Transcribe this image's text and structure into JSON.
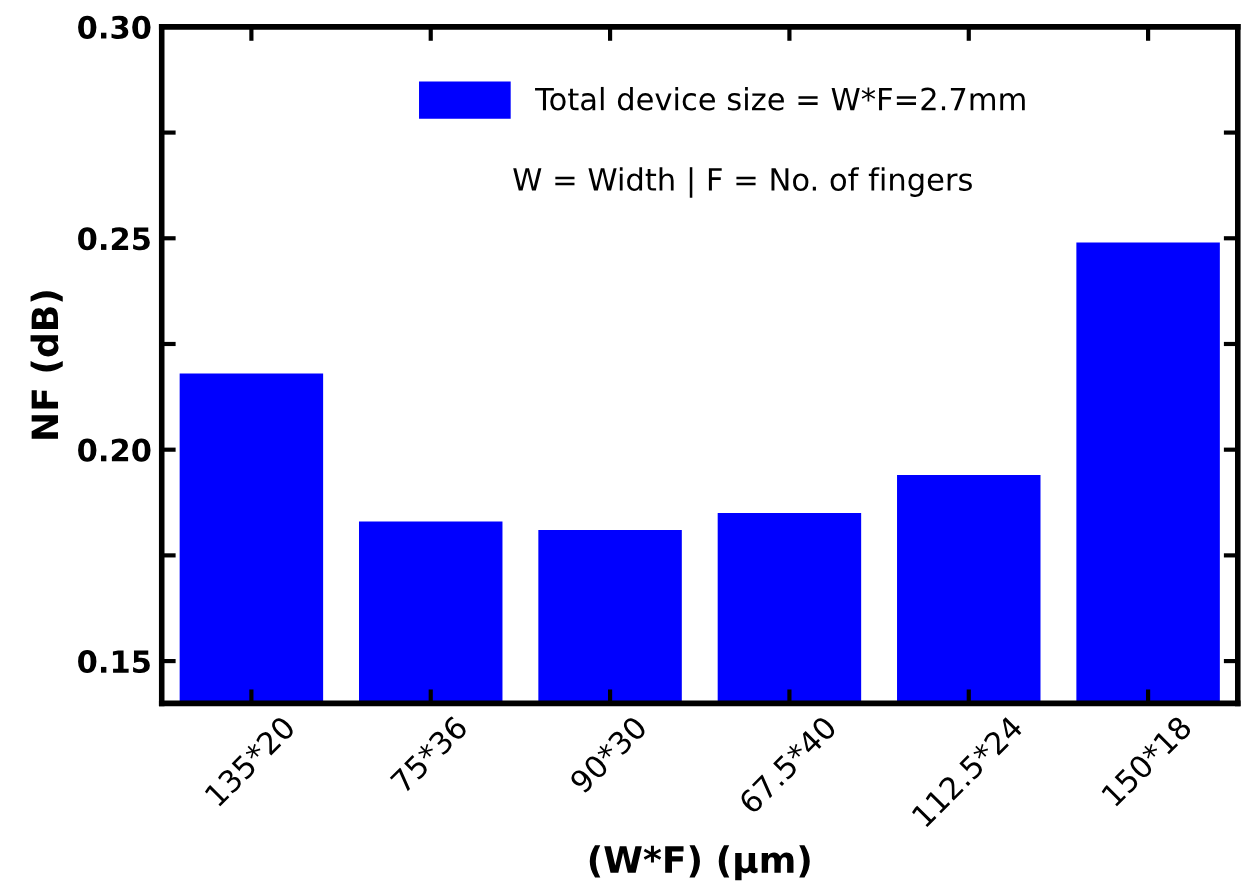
{
  "chart_data": {
    "type": "bar",
    "xlabel": "(W*F) (μm)",
    "ylabel": "NF (dB)",
    "categories": [
      "135*20",
      "75*36",
      "90*30",
      "67.5*40",
      "112.5*24",
      "150*18"
    ],
    "series": [
      {
        "name": "Total device size = W*F=2.7mm",
        "color": "#0000ff",
        "values": [
          0.218,
          0.183,
          0.181,
          0.185,
          0.194,
          0.249
        ]
      }
    ],
    "annotations": [
      "W = Width | F = No. of fingers"
    ],
    "ylim": [
      0.14,
      0.3
    ],
    "yticks": [
      0.15,
      {
        "value": 0.175,
        "label": null
      },
      {
        "value": 0.2,
        "label": "0.20"
      },
      {
        "value": 0.225,
        "label": null
      },
      0.25,
      {
        "value": 0.275,
        "label": null
      },
      {
        "value": 0.3,
        "label": "0.30"
      }
    ],
    "legend": "top right",
    "grid": false
  }
}
